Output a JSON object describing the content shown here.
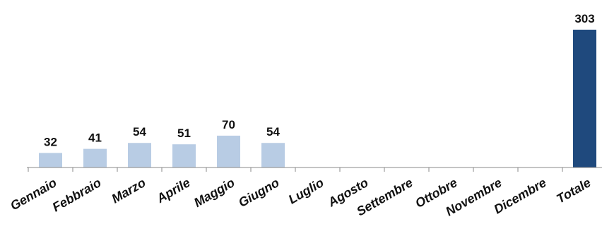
{
  "chart_data": {
    "type": "bar",
    "categories": [
      "Gennaio",
      "Febbraio",
      "Marzo",
      "Aprile",
      "Maggio",
      "Giugno",
      "Luglio",
      "Agosto",
      "Settembre",
      "Ottobre",
      "Novembre",
      "Dicembre",
      "Totale"
    ],
    "values": [
      32,
      41,
      54,
      51,
      70,
      54,
      null,
      null,
      null,
      null,
      null,
      null,
      303
    ],
    "title": "",
    "xlabel": "",
    "ylabel": "",
    "ylim": [
      0,
      303
    ],
    "grid": false,
    "legend": "none",
    "colors": {
      "monthly": "#b8cce4",
      "total": "#1f497d",
      "axis": "#888888",
      "text": "#111111"
    }
  }
}
